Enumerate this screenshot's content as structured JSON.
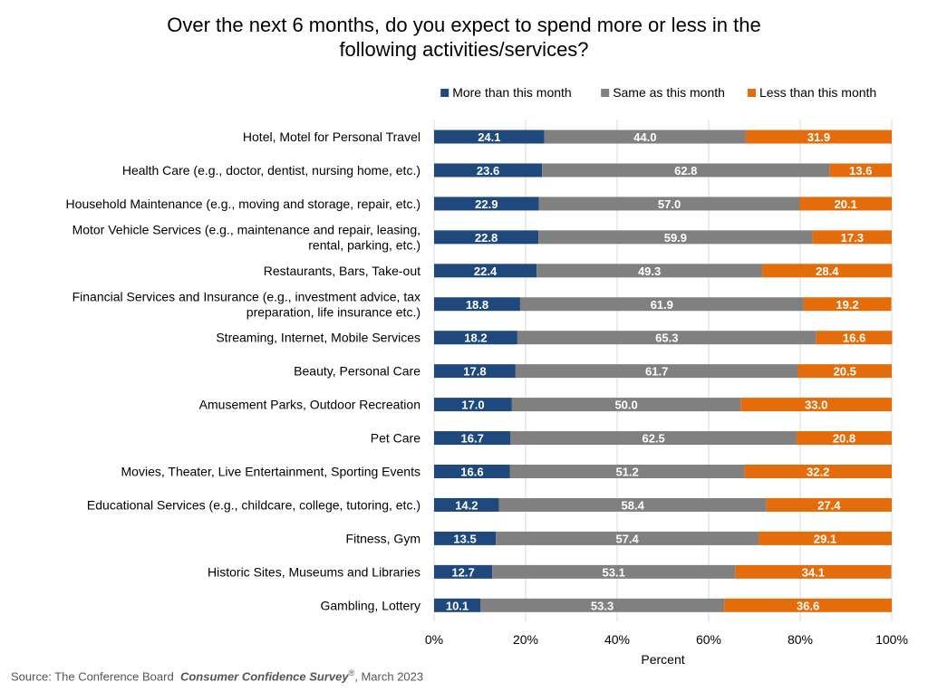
{
  "chart_data": {
    "type": "bar",
    "orientation": "horizontal",
    "stacked": true,
    "title_lines": [
      "Over the next 6 months, do you expect to spend more or less in the",
      "following activities/services?"
    ],
    "xlabel": "Percent",
    "ylabel": "",
    "xlim": [
      0,
      100
    ],
    "x_ticks": [
      "0%",
      "20%",
      "40%",
      "60%",
      "80%",
      "100%"
    ],
    "x_tick_values": [
      0,
      20,
      40,
      60,
      80,
      100
    ],
    "grid": true,
    "legend_position": "top-right",
    "categories": [
      [
        "Hotel, Motel for Personal Travel"
      ],
      [
        "Health Care (e.g., doctor, dentist, nursing home, etc.)"
      ],
      [
        "Household Maintenance (e.g., moving and storage, repair, etc.)"
      ],
      [
        "Motor Vehicle Services (e.g., maintenance and repair, leasing,",
        "rental, parking, etc.)"
      ],
      [
        "Restaurants, Bars, Take-out"
      ],
      [
        "Financial Services and Insurance (e.g., investment advice, tax",
        "preparation, life insurance etc.)"
      ],
      [
        "Streaming, Internet, Mobile Services"
      ],
      [
        "Beauty, Personal Care"
      ],
      [
        "Amusement Parks, Outdoor Recreation"
      ],
      [
        "Pet Care"
      ],
      [
        "Movies, Theater, Live Entertainment, Sporting Events"
      ],
      [
        "Educational Services (e.g., childcare, college, tutoring, etc.)"
      ],
      [
        "Fitness, Gym"
      ],
      [
        "Historic Sites, Museums and Libraries"
      ],
      [
        "Gambling, Lottery"
      ]
    ],
    "series": [
      {
        "name": "More than this month",
        "color": "#1F497D",
        "values": [
          24.1,
          23.6,
          22.9,
          22.8,
          22.4,
          18.8,
          18.2,
          17.8,
          17.0,
          16.7,
          16.6,
          14.2,
          13.5,
          12.7,
          10.1
        ]
      },
      {
        "name": "Same as this month",
        "color": "#808080",
        "values": [
          44.0,
          62.8,
          57.0,
          59.9,
          49.3,
          61.9,
          65.3,
          61.7,
          50.0,
          62.5,
          51.2,
          58.4,
          57.4,
          53.1,
          53.3
        ]
      },
      {
        "name": "Less than this month",
        "color": "#E46C0A",
        "values": [
          31.9,
          13.6,
          20.1,
          17.3,
          28.4,
          19.2,
          16.6,
          20.5,
          33.0,
          20.8,
          32.2,
          27.4,
          29.1,
          34.1,
          36.6
        ]
      }
    ]
  },
  "source": {
    "prefix": "Source: The Conference Board",
    "publication": "Consumer Confidence Survey",
    "mark": "®",
    "date": ", March 2023"
  }
}
